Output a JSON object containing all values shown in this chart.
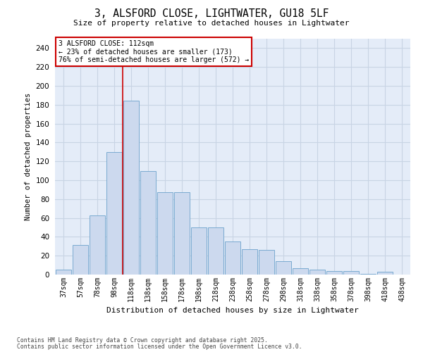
{
  "title_line1": "3, ALSFORD CLOSE, LIGHTWATER, GU18 5LF",
  "title_line2": "Size of property relative to detached houses in Lightwater",
  "xlabel": "Distribution of detached houses by size in Lightwater",
  "ylabel": "Number of detached properties",
  "categories": [
    "37sqm",
    "57sqm",
    "78sqm",
    "98sqm",
    "118sqm",
    "138sqm",
    "158sqm",
    "178sqm",
    "198sqm",
    "218sqm",
    "238sqm",
    "258sqm",
    "278sqm",
    "298sqm",
    "318sqm",
    "338sqm",
    "358sqm",
    "378sqm",
    "398sqm",
    "418sqm",
    "438sqm"
  ],
  "values": [
    5,
    31,
    63,
    130,
    184,
    110,
    87,
    87,
    50,
    50,
    35,
    27,
    26,
    14,
    7,
    5,
    4,
    4,
    1,
    3,
    0
  ],
  "bar_color": "#ccd9ee",
  "bar_edge_color": "#7aaad0",
  "red_line_index": 3.5,
  "annotation_line1": "3 ALSFORD CLOSE: 112sqm",
  "annotation_line2": "← 23% of detached houses are smaller (173)",
  "annotation_line3": "76% of semi-detached houses are larger (572) →",
  "ylim": [
    0,
    250
  ],
  "yticks": [
    0,
    20,
    40,
    60,
    80,
    100,
    120,
    140,
    160,
    180,
    200,
    220,
    240
  ],
  "grid_color": "#c8d4e4",
  "background_color": "#e4ecf8",
  "footer_line1": "Contains HM Land Registry data © Crown copyright and database right 2025.",
  "footer_line2": "Contains public sector information licensed under the Open Government Licence v3.0."
}
